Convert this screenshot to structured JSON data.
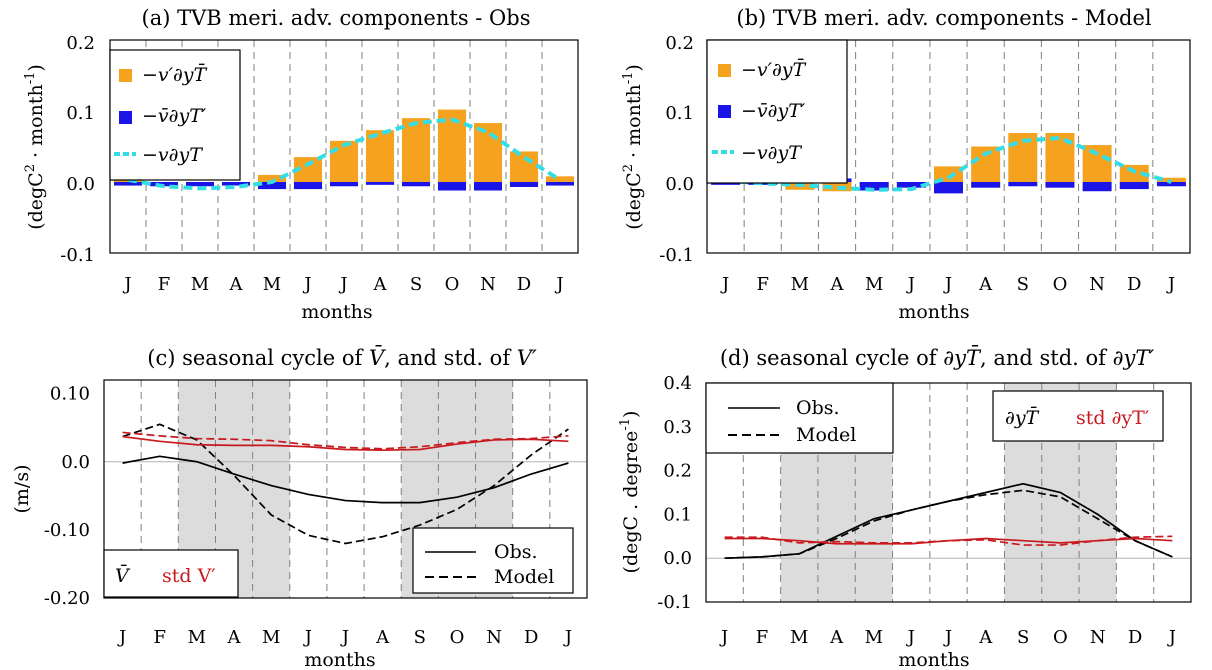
{
  "months_label": "months",
  "colors": {
    "orange": "#f5a21e",
    "blue": "#1a14e6",
    "cyan": "#33dde6",
    "black": "#000000",
    "red": "#c8191e",
    "shade": "#dcdcdc",
    "grid": "#808080"
  },
  "chart_data": [
    {
      "id": "a",
      "type": "bar",
      "title": "(a) TVB meri. adv. components - Obs",
      "xlabel": "months",
      "ylabel": "(degC ² month⁻¹)",
      "ylabel_main": "(degC",
      "ylabel_sup1": "2",
      "ylabel_mid": "month",
      "ylabel_sup2": "-1",
      "ylabel_end": ")",
      "ylim": [
        -0.1,
        0.2
      ],
      "yticks": [
        "-0.1",
        "0.0",
        "0.1",
        "0.2"
      ],
      "categories": [
        "J",
        "F",
        "M",
        "A",
        "M",
        "J",
        "J",
        "A",
        "S",
        "O",
        "N",
        "D",
        "J"
      ],
      "grid": "vertical dashed",
      "legend_position": "top-left",
      "series": [
        {
          "name": "−v′∂yT̄",
          "kind": "bar",
          "color": "#f5a21e",
          "values": [
            0.01,
            0.0,
            -0.003,
            -0.002,
            0.01,
            0.035,
            0.058,
            0.073,
            0.09,
            0.102,
            0.083,
            0.043,
            0.008
          ]
        },
        {
          "name": "−v̄∂yT′",
          "kind": "bar",
          "color": "#1a14e6",
          "values": [
            -0.005,
            -0.006,
            -0.006,
            -0.005,
            -0.01,
            -0.01,
            -0.006,
            -0.004,
            -0.006,
            -0.012,
            -0.012,
            -0.007,
            -0.005
          ]
        },
        {
          "name": "−v∂yT",
          "kind": "dashed-line",
          "color": "#33dde6",
          "values": [
            0.003,
            -0.006,
            -0.009,
            -0.007,
            0.0,
            0.025,
            0.052,
            0.068,
            0.083,
            0.088,
            0.07,
            0.035,
            0.003
          ]
        }
      ]
    },
    {
      "id": "b",
      "type": "bar",
      "title": "(b) TVB meri. adv. components - Model",
      "xlabel": "months",
      "ylabel": "(degC ² month⁻¹)",
      "ylabel_main": "(degC",
      "ylabel_sup1": "2",
      "ylabel_mid": "month",
      "ylabel_sup2": "-1",
      "ylabel_end": ")",
      "ylim": [
        -0.1,
        0.2
      ],
      "yticks": [
        "-0.1",
        "0.0",
        "0.1",
        "0.2"
      ],
      "categories": [
        "J",
        "F",
        "M",
        "A",
        "M",
        "J",
        "J",
        "A",
        "S",
        "O",
        "N",
        "D",
        "J"
      ],
      "grid": "vertical dashed",
      "legend_position": "top-left",
      "series": [
        {
          "name": "−v′∂yT̄",
          "kind": "bar",
          "color": "#f5a21e",
          "values": [
            0.006,
            0.002,
            -0.011,
            -0.013,
            -0.007,
            -0.003,
            0.022,
            0.05,
            0.069,
            0.069,
            0.052,
            0.024,
            0.006
          ]
        },
        {
          "name": "−v̄∂yT′",
          "kind": "bar",
          "color": "#1a14e6",
          "values": [
            -0.004,
            -0.004,
            0.007,
            0.005,
            -0.012,
            -0.008,
            -0.016,
            -0.008,
            -0.006,
            -0.008,
            -0.013,
            -0.01,
            -0.006
          ]
        },
        {
          "name": "−v∂yT",
          "kind": "dashed-line",
          "color": "#33dde6",
          "values": [
            0.002,
            -0.002,
            -0.004,
            -0.008,
            -0.011,
            -0.01,
            0.006,
            0.04,
            0.058,
            0.062,
            0.04,
            0.015,
            0.0
          ]
        }
      ]
    },
    {
      "id": "c",
      "type": "line",
      "title": "(c) seasonal cycle of V̄, and std. of V′",
      "title_part1": "(c) seasonal cycle of",
      "title_sym1": "V̄",
      "title_part2": ", and std. of",
      "title_sym2": "V′",
      "xlabel": "months",
      "ylabel": "(m/s)",
      "ylim": [
        -0.2,
        0.12
      ],
      "yticks": [
        "-0.20",
        "-0.10",
        "0.0",
        "0.10"
      ],
      "ytick_values": [
        -0.2,
        -0.1,
        0.0,
        0.1
      ],
      "categories": [
        "J",
        "F",
        "M",
        "A",
        "M",
        "J",
        "J",
        "A",
        "S",
        "O",
        "N",
        "D",
        "J"
      ],
      "shaded_months": [
        "M-M",
        "S-N"
      ],
      "legend_position": "bottom-right",
      "legend2": {
        "mean": "V̄",
        "std": "std V′"
      },
      "series": [
        {
          "name": "Obs.",
          "variable": "mean",
          "color": "#000000",
          "style": "solid",
          "values": [
            -0.002,
            0.008,
            0.0,
            -0.018,
            -0.035,
            -0.048,
            -0.057,
            -0.06,
            -0.06,
            -0.052,
            -0.038,
            -0.018,
            -0.002
          ]
        },
        {
          "name": "Model",
          "variable": "mean",
          "color": "#000000",
          "style": "dashed",
          "values": [
            0.037,
            0.055,
            0.032,
            -0.02,
            -0.078,
            -0.108,
            -0.12,
            -0.11,
            -0.093,
            -0.07,
            -0.035,
            0.01,
            0.048
          ]
        },
        {
          "name": "Obs.",
          "variable": "std",
          "color": "#c8191e",
          "style": "solid",
          "values": [
            0.037,
            0.03,
            0.025,
            0.024,
            0.024,
            0.022,
            0.018,
            0.017,
            0.018,
            0.026,
            0.032,
            0.033,
            0.03
          ]
        },
        {
          "name": "Model",
          "variable": "std",
          "color": "#c8191e",
          "style": "dashed",
          "values": [
            0.043,
            0.038,
            0.034,
            0.033,
            0.031,
            0.025,
            0.021,
            0.019,
            0.022,
            0.028,
            0.033,
            0.034,
            0.038
          ]
        }
      ]
    },
    {
      "id": "d",
      "type": "line",
      "title": "(d) seasonal cycle of ∂yT̄, and std. of ∂yT′",
      "title_part1": "(d) seasonal cycle of",
      "title_sym1": "∂yT̄",
      "title_part2": ", and std. of",
      "title_sym2": "∂yT′",
      "xlabel": "months",
      "ylabel": "(degC . degree⁻¹)",
      "ylabel_main": "(degC . degree",
      "ylabel_sup": "-1",
      "ylabel_end": ")",
      "ylim": [
        -0.1,
        0.4
      ],
      "yticks": [
        "-0.1",
        "0.0",
        "0.1",
        "0.2",
        "0.3",
        "0.4"
      ],
      "ytick_values": [
        -0.1,
        0.0,
        0.1,
        0.2,
        0.3,
        0.4
      ],
      "categories": [
        "J",
        "F",
        "M",
        "A",
        "M",
        "J",
        "J",
        "A",
        "S",
        "O",
        "N",
        "D",
        "J"
      ],
      "shaded_months": [
        "M-M",
        "S-N"
      ],
      "legend_position": "top-left",
      "legend2": {
        "mean": "∂yT̄",
        "std": "std ∂yT′"
      },
      "series": [
        {
          "name": "Obs.",
          "variable": "mean",
          "color": "#000000",
          "style": "solid",
          "values": [
            0.0,
            0.003,
            0.01,
            0.05,
            0.09,
            0.11,
            0.13,
            0.15,
            0.17,
            0.15,
            0.1,
            0.04,
            0.003
          ]
        },
        {
          "name": "Model",
          "variable": "mean",
          "color": "#000000",
          "style": "dashed",
          "values": [
            0.0,
            0.003,
            0.01,
            0.045,
            0.085,
            0.11,
            0.13,
            0.145,
            0.155,
            0.14,
            0.09,
            0.04,
            0.003
          ]
        },
        {
          "name": "Obs.",
          "variable": "std",
          "color": "#c8191e",
          "style": "solid",
          "values": [
            0.045,
            0.045,
            0.04,
            0.033,
            0.033,
            0.033,
            0.04,
            0.045,
            0.04,
            0.035,
            0.04,
            0.045,
            0.04
          ]
        },
        {
          "name": "Model",
          "variable": "std",
          "color": "#c8191e",
          "style": "dashed",
          "values": [
            0.048,
            0.048,
            0.035,
            0.038,
            0.035,
            0.035,
            0.04,
            0.042,
            0.03,
            0.03,
            0.04,
            0.048,
            0.05
          ]
        }
      ]
    }
  ]
}
